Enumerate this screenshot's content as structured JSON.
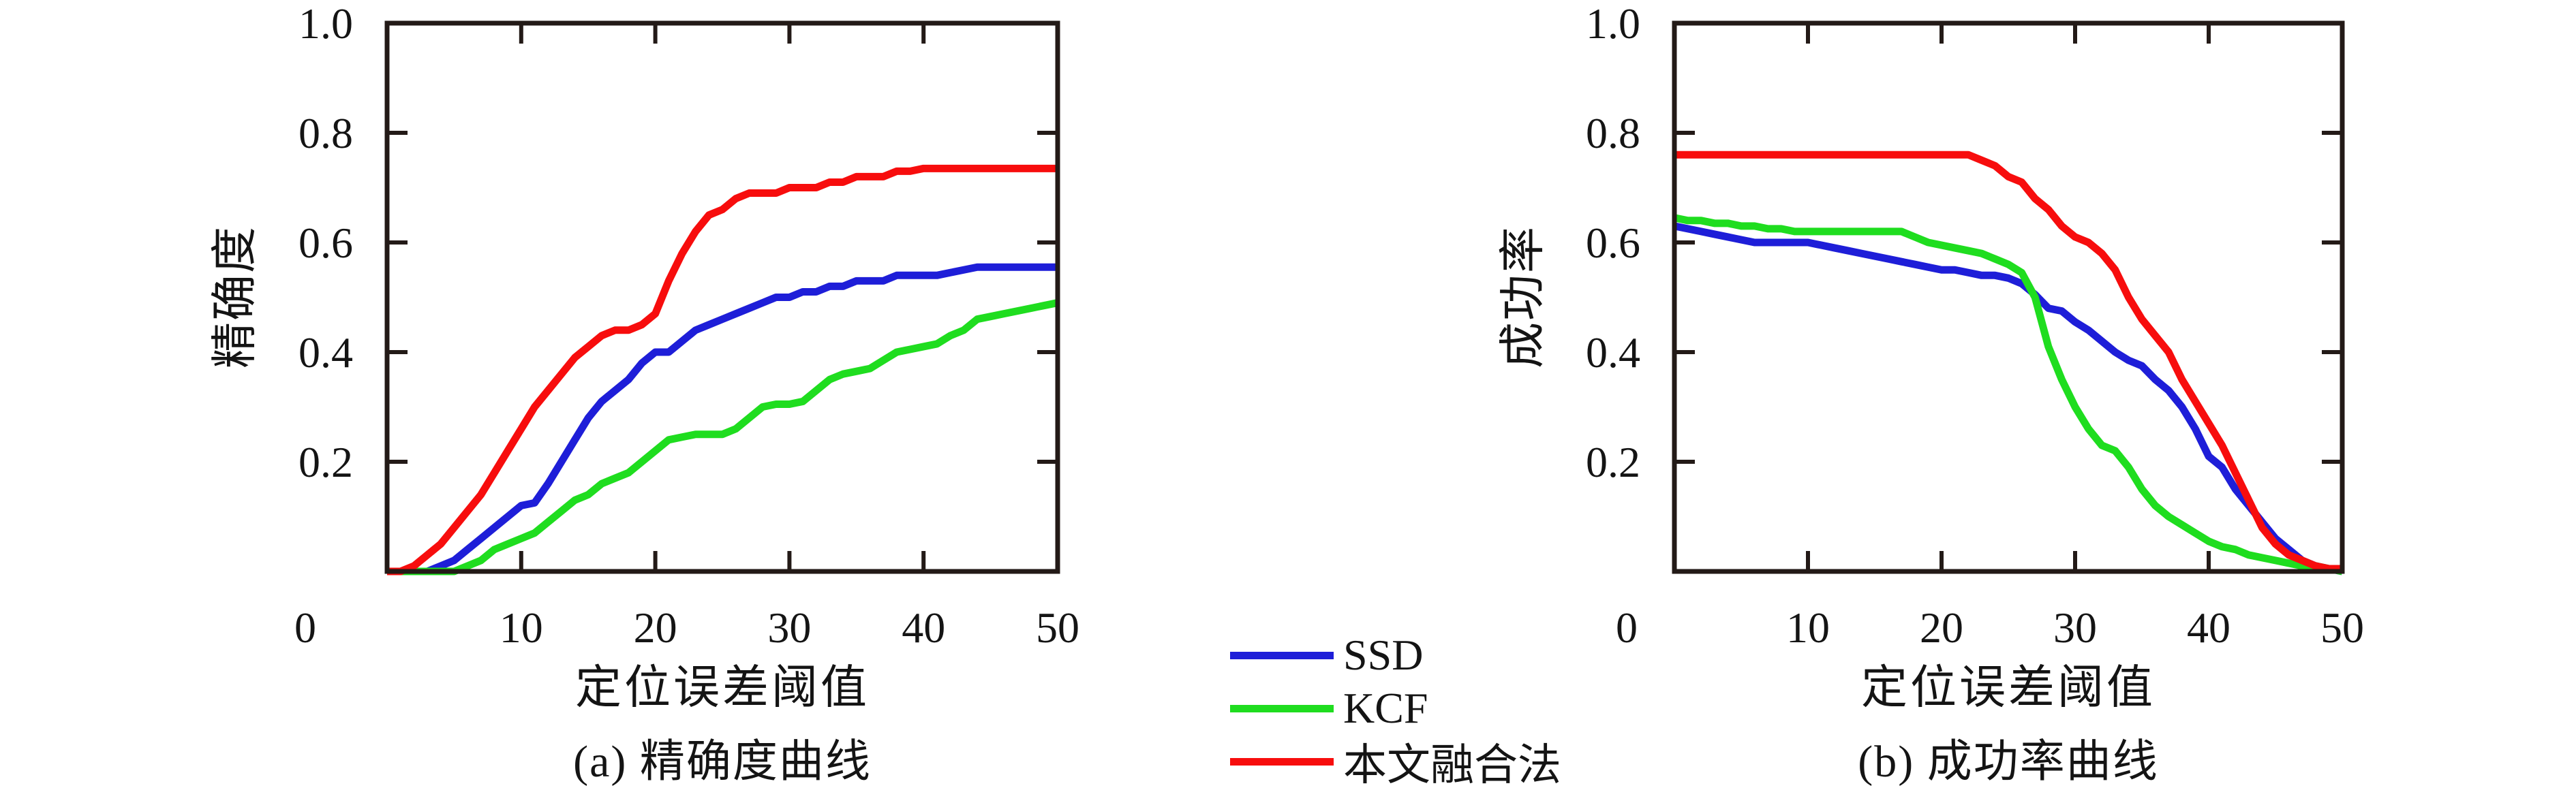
{
  "page": {
    "background": "#ffffff"
  },
  "colors": {
    "axis": "#231a17",
    "text": "#141414"
  },
  "legend": {
    "items": [
      {
        "label": "SSD",
        "color": "#1e1ed8"
      },
      {
        "label": "KCF",
        "color": "#1fdd1f"
      },
      {
        "label": "本文融合法",
        "color": "#f70d0d"
      }
    ]
  },
  "chart_data": [
    {
      "id": "precision-curve",
      "type": "line",
      "caption": "(a) 精确度曲线",
      "xlabel": "定位误差阈值",
      "ylabel": "精确度",
      "xlim": [
        0,
        50
      ],
      "ylim": [
        0,
        1.0
      ],
      "xticks": [
        0,
        10,
        20,
        30,
        40,
        50
      ],
      "xtick_labels": [
        "0",
        "10",
        "20",
        "30",
        "40",
        "50"
      ],
      "yticks": [
        0.2,
        0.4,
        0.6,
        0.8,
        1.0
      ],
      "ytick_labels": [
        "0.2",
        "0.4",
        "0.6",
        "0.8",
        "1.0"
      ],
      "grid": false,
      "legend_position": "outside-bottom-center",
      "x_start": 0,
      "x_step": 1,
      "series": [
        {
          "name": "SSD",
          "color": "#1e1ed8",
          "values": [
            0,
            0,
            0,
            0,
            0.01,
            0.02,
            0.04,
            0.06,
            0.08,
            0.1,
            0.12,
            0.125,
            0.16,
            0.2,
            0.24,
            0.28,
            0.31,
            0.33,
            0.35,
            0.38,
            0.4,
            0.4,
            0.42,
            0.44,
            0.45,
            0.46,
            0.47,
            0.48,
            0.49,
            0.5,
            0.5,
            0.51,
            0.51,
            0.52,
            0.52,
            0.53,
            0.53,
            0.53,
            0.54,
            0.54,
            0.54,
            0.54,
            0.545,
            0.55,
            0.555,
            0.555,
            0.555,
            0.555,
            0.555,
            0.555,
            0.555
          ]
        },
        {
          "name": "KCF",
          "color": "#1fdd1f",
          "values": [
            0,
            0,
            0,
            0,
            0,
            0,
            0.01,
            0.02,
            0.04,
            0.05,
            0.06,
            0.07,
            0.09,
            0.11,
            0.13,
            0.14,
            0.16,
            0.17,
            0.18,
            0.2,
            0.22,
            0.24,
            0.245,
            0.25,
            0.25,
            0.25,
            0.26,
            0.28,
            0.3,
            0.305,
            0.305,
            0.31,
            0.33,
            0.35,
            0.36,
            0.365,
            0.37,
            0.385,
            0.4,
            0.405,
            0.41,
            0.415,
            0.43,
            0.44,
            0.46,
            0.465,
            0.47,
            0.475,
            0.48,
            0.485,
            0.49
          ]
        },
        {
          "name": "本文融合法",
          "color": "#f70d0d",
          "values": [
            0,
            0,
            0.01,
            0.03,
            0.05,
            0.08,
            0.11,
            0.14,
            0.18,
            0.22,
            0.26,
            0.3,
            0.33,
            0.36,
            0.39,
            0.41,
            0.43,
            0.44,
            0.44,
            0.45,
            0.47,
            0.53,
            0.58,
            0.62,
            0.65,
            0.66,
            0.68,
            0.69,
            0.69,
            0.69,
            0.7,
            0.7,
            0.7,
            0.71,
            0.71,
            0.72,
            0.72,
            0.72,
            0.73,
            0.73,
            0.735,
            0.735,
            0.735,
            0.735,
            0.735,
            0.735,
            0.735,
            0.735,
            0.735,
            0.735,
            0.735
          ]
        }
      ]
    },
    {
      "id": "success-rate-curve",
      "type": "line",
      "caption": "(b) 成功率曲线",
      "xlabel": "定位误差阈值",
      "ylabel": "成功率",
      "xlim": [
        0,
        50
      ],
      "ylim": [
        0,
        1.0
      ],
      "xticks": [
        0,
        10,
        20,
        30,
        40,
        50
      ],
      "xtick_labels": [
        "0",
        "10",
        "20",
        "30",
        "40",
        "50"
      ],
      "yticks": [
        0.2,
        0.4,
        0.6,
        0.8,
        1.0
      ],
      "ytick_labels": [
        "0.2",
        "0.4",
        "0.6",
        "0.8",
        "1.0"
      ],
      "grid": false,
      "legend_position": "outside-bottom-center",
      "x_start": 0,
      "x_step": 1,
      "series": [
        {
          "name": "SSD",
          "color": "#1e1ed8",
          "values": [
            0.63,
            0.625,
            0.62,
            0.615,
            0.61,
            0.605,
            0.6,
            0.6,
            0.6,
            0.6,
            0.6,
            0.595,
            0.59,
            0.585,
            0.58,
            0.575,
            0.57,
            0.565,
            0.56,
            0.555,
            0.55,
            0.55,
            0.545,
            0.54,
            0.54,
            0.535,
            0.525,
            0.505,
            0.48,
            0.475,
            0.455,
            0.44,
            0.42,
            0.4,
            0.385,
            0.375,
            0.35,
            0.33,
            0.3,
            0.26,
            0.21,
            0.19,
            0.15,
            0.12,
            0.09,
            0.06,
            0.04,
            0.02,
            0.01,
            0.005,
            0
          ]
        },
        {
          "name": "KCF",
          "color": "#1fdd1f",
          "values": [
            0.645,
            0.64,
            0.64,
            0.635,
            0.635,
            0.63,
            0.63,
            0.625,
            0.625,
            0.62,
            0.62,
            0.62,
            0.62,
            0.62,
            0.62,
            0.62,
            0.62,
            0.62,
            0.61,
            0.6,
            0.595,
            0.59,
            0.585,
            0.58,
            0.57,
            0.56,
            0.545,
            0.5,
            0.41,
            0.35,
            0.3,
            0.26,
            0.23,
            0.22,
            0.19,
            0.15,
            0.12,
            0.1,
            0.085,
            0.07,
            0.055,
            0.045,
            0.04,
            0.03,
            0.025,
            0.02,
            0.015,
            0.01,
            0.01,
            0.005,
            0
          ]
        },
        {
          "name": "本文融合法",
          "color": "#f70d0d",
          "values": [
            0.76,
            0.76,
            0.76,
            0.76,
            0.76,
            0.76,
            0.76,
            0.76,
            0.76,
            0.76,
            0.76,
            0.76,
            0.76,
            0.76,
            0.76,
            0.76,
            0.76,
            0.76,
            0.76,
            0.76,
            0.76,
            0.76,
            0.76,
            0.75,
            0.74,
            0.72,
            0.71,
            0.68,
            0.66,
            0.63,
            0.61,
            0.6,
            0.58,
            0.55,
            0.5,
            0.46,
            0.43,
            0.4,
            0.35,
            0.31,
            0.27,
            0.23,
            0.18,
            0.13,
            0.08,
            0.05,
            0.03,
            0.02,
            0.01,
            0.005,
            0.005
          ]
        }
      ]
    }
  ]
}
